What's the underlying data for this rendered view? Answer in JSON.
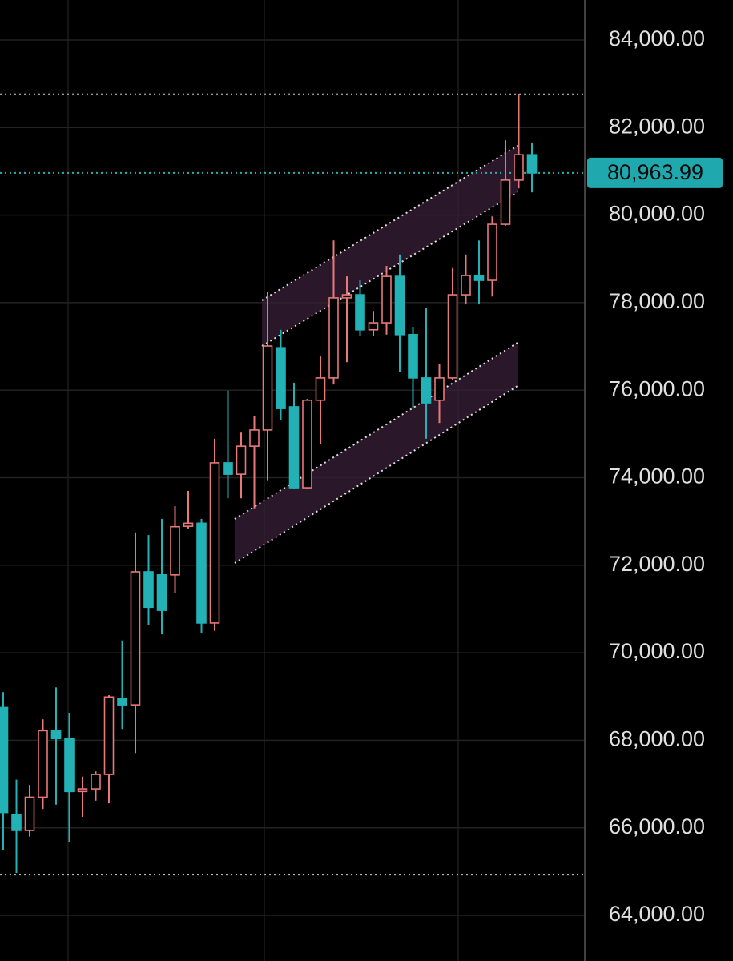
{
  "chart_data": {
    "type": "candlestick",
    "open": [
      68750,
      66300,
      65940,
      66700,
      68220,
      68040,
      66830,
      66890,
      67220,
      68960,
      68810,
      71850,
      71780,
      71780,
      72890,
      72960,
      70680,
      74340,
      74080,
      74720,
      75090,
      76970,
      75620,
      73770,
      75770,
      76280,
      78110,
      78180,
      77380,
      77540,
      78600,
      77270,
      76280,
      75770,
      76280,
      78180,
      78620,
      78510,
      79790,
      80800,
      81380
    ],
    "high": [
      69100,
      67100,
      66980,
      68480,
      69210,
      68630,
      67170,
      67290,
      69030,
      70280,
      72750,
      72690,
      73060,
      73350,
      73700,
      73060,
      74890,
      75990,
      75030,
      75400,
      78240,
      77380,
      76170,
      75800,
      76770,
      79420,
      78600,
      78510,
      77810,
      78840,
      79100,
      77450,
      77870,
      76590,
      78790,
      79100,
      79420,
      79970,
      81710,
      82760,
      81660
    ],
    "low": [
      65500,
      64970,
      65800,
      66430,
      66530,
      65670,
      66250,
      66620,
      66560,
      68260,
      67710,
      70640,
      70420,
      71370,
      72840,
      70460,
      70500,
      73530,
      73530,
      73300,
      73940,
      75310,
      73750,
      73740,
      74760,
      76130,
      76640,
      77230,
      77230,
      77270,
      76410,
      75580,
      74890,
      75250,
      76220,
      77960,
      77960,
      78140,
      79760,
      80610,
      80520
    ],
    "close": [
      66350,
      65940,
      66700,
      68220,
      68040,
      66830,
      66890,
      67220,
      68990,
      68810,
      71850,
      71040,
      70970,
      72880,
      72960,
      70680,
      74340,
      74080,
      74720,
      75090,
      77010,
      75580,
      73770,
      75770,
      76280,
      78110,
      78180,
      77380,
      77540,
      78600,
      77270,
      76280,
      75710,
      76280,
      78180,
      78620,
      78510,
      79790,
      80800,
      81380,
      80963.99
    ],
    "up_color": "#e8787a",
    "down_color": "#22b1b5",
    "ylim": [
      62957,
      84915
    ],
    "yticks": [
      {
        "value": 64000,
        "label": "64,000.00"
      },
      {
        "value": 66000,
        "label": "66,000.00"
      },
      {
        "value": 68000,
        "label": "68,000.00"
      },
      {
        "value": 70000,
        "label": "70,000.00"
      },
      {
        "value": 72000,
        "label": "72,000.00"
      },
      {
        "value": 74000,
        "label": "74,000.00"
      },
      {
        "value": 76000,
        "label": "76,000.00"
      },
      {
        "value": 78000,
        "label": "78,000.00"
      },
      {
        "value": 80000,
        "label": "80,000.00"
      },
      {
        "value": 82000,
        "label": "82,000.00"
      },
      {
        "value": 84000,
        "label": "84,000.00"
      }
    ],
    "grid": true,
    "levels": [
      82760,
      64930
    ],
    "last_price": {
      "value": 80963.99,
      "label": "80,963.99"
    }
  }
}
